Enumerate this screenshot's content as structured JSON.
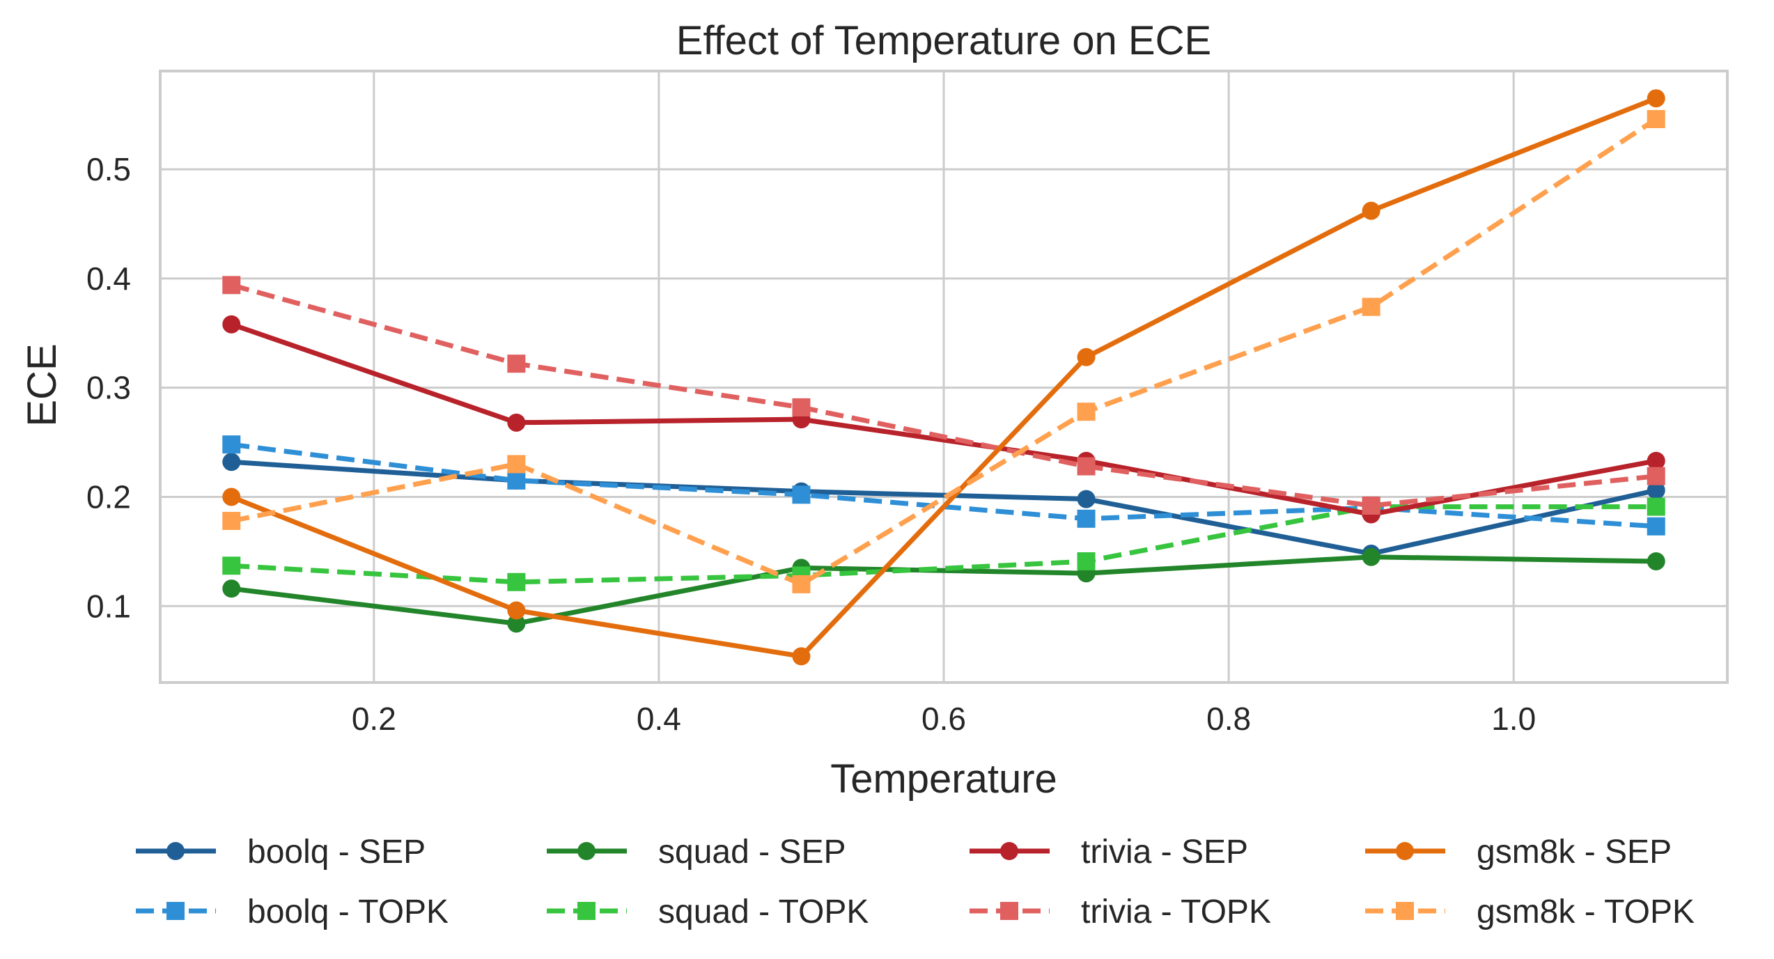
{
  "chart_data": {
    "type": "line",
    "title": "Effect of Temperature on ECE",
    "xlabel": "Temperature",
    "ylabel": "ECE",
    "xlim": [
      0.05,
      1.15
    ],
    "ylim": [
      0.03,
      0.59
    ],
    "xticks": [
      0.2,
      0.4,
      0.6,
      0.8,
      1.0
    ],
    "xtick_labels": [
      "0.2",
      "0.4",
      "0.6",
      "0.8",
      "1.0"
    ],
    "yticks": [
      0.1,
      0.2,
      0.3,
      0.4,
      0.5
    ],
    "ytick_labels": [
      "0.1",
      "0.2",
      "0.3",
      "0.4",
      "0.5"
    ],
    "grid": true,
    "legend_position": "bottom, outside plot, 4 columns",
    "x": [
      0.1,
      0.3,
      0.5,
      0.7,
      0.9,
      1.1
    ],
    "series": [
      {
        "name": "boolq - SEP",
        "color": "#1f5f96",
        "dashed": false,
        "marker": "circle",
        "values": [
          0.232,
          0.215,
          0.205,
          0.198,
          0.148,
          0.206
        ]
      },
      {
        "name": "boolq - TOPK",
        "color": "#2e8fd6",
        "dashed": true,
        "marker": "square",
        "values": [
          0.248,
          0.215,
          0.202,
          0.18,
          0.19,
          0.173
        ]
      },
      {
        "name": "squad - SEP",
        "color": "#22852a",
        "dashed": false,
        "marker": "circle",
        "values": [
          0.116,
          0.084,
          0.135,
          0.13,
          0.145,
          0.141
        ]
      },
      {
        "name": "squad - TOPK",
        "color": "#37c43e",
        "dashed": true,
        "marker": "square",
        "values": [
          0.137,
          0.122,
          0.128,
          0.141,
          0.191,
          0.191
        ]
      },
      {
        "name": "trivia - SEP",
        "color": "#b8222a",
        "dashed": false,
        "marker": "circle",
        "values": [
          0.358,
          0.268,
          0.271,
          0.233,
          0.184,
          0.233
        ]
      },
      {
        "name": "trivia - TOPK",
        "color": "#e06060",
        "dashed": true,
        "marker": "square",
        "values": [
          0.394,
          0.322,
          0.282,
          0.228,
          0.192,
          0.219
        ]
      },
      {
        "name": "gsm8k - SEP",
        "color": "#e36d0d",
        "dashed": false,
        "marker": "circle",
        "values": [
          0.2,
          0.096,
          0.054,
          0.328,
          0.462,
          0.565
        ]
      },
      {
        "name": "gsm8k - TOPK",
        "color": "#ffa04e",
        "dashed": true,
        "marker": "square",
        "values": [
          0.178,
          0.23,
          0.12,
          0.278,
          0.374,
          0.546
        ]
      }
    ]
  }
}
